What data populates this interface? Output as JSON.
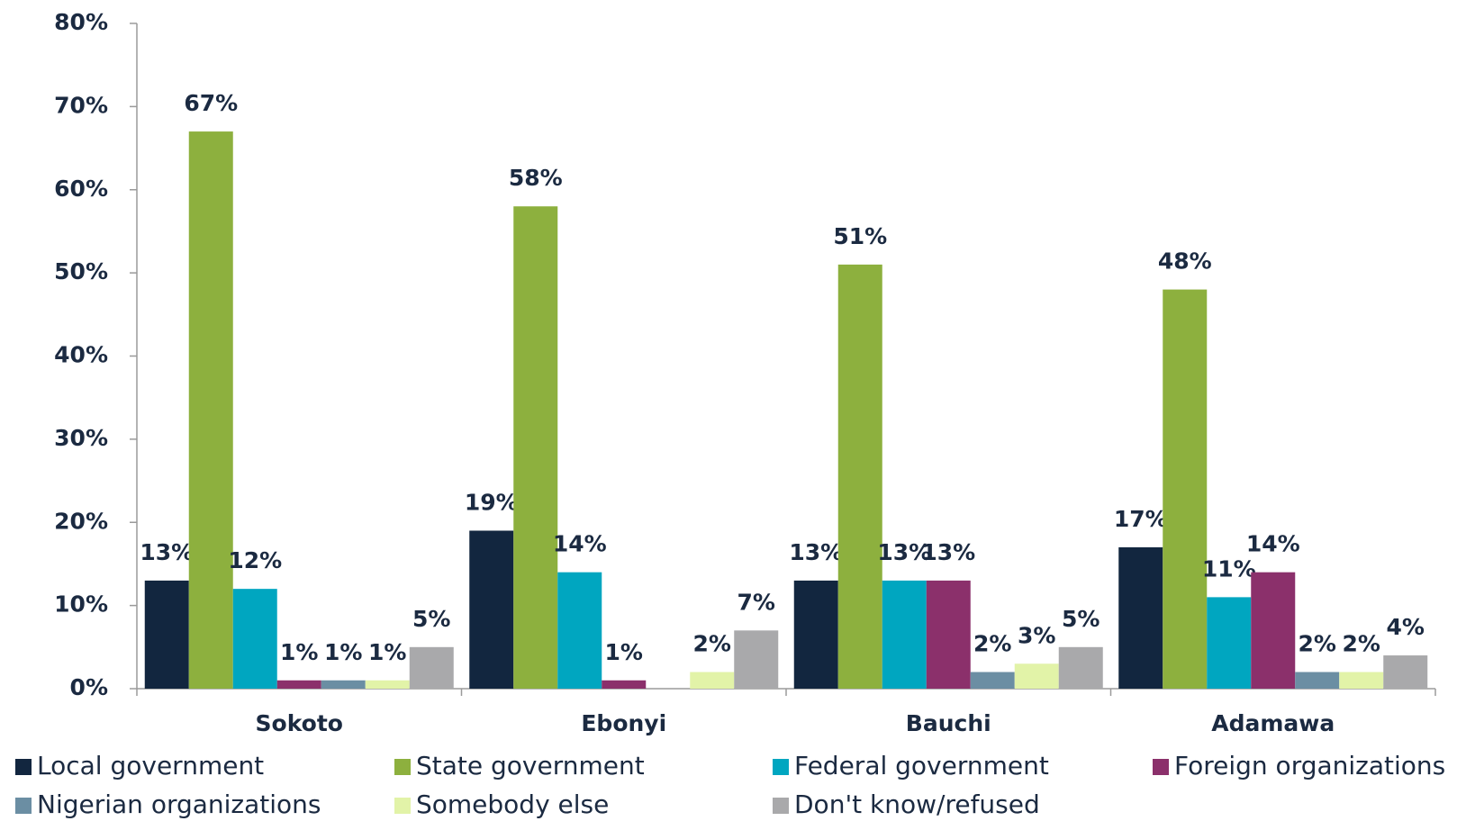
{
  "chart_data": {
    "type": "bar",
    "categories": [
      "Sokoto",
      "Ebonyi",
      "Bauchi",
      "Adamawa"
    ],
    "series": [
      {
        "name": "Local government",
        "color": "#12263f",
        "values": [
          13,
          19,
          13,
          17
        ],
        "value_labels": [
          "13%",
          "19%",
          "13%",
          "17%"
        ]
      },
      {
        "name": "State government",
        "color": "#8db03e",
        "values": [
          67,
          58,
          51,
          48
        ],
        "value_labels": [
          "67%",
          "58%",
          "51%",
          "48%"
        ]
      },
      {
        "name": "Federal government",
        "color": "#00a6c0",
        "values": [
          12,
          14,
          13,
          11
        ],
        "value_labels": [
          "12%",
          "14%",
          "13%",
          "11%"
        ]
      },
      {
        "name": "Foreign organizations",
        "color": "#8b306b",
        "values": [
          1,
          1,
          13,
          14
        ],
        "value_labels": [
          "1%",
          "1%",
          "13%",
          "14%"
        ]
      },
      {
        "name": "Nigerian organizations",
        "color": "#6b8ea3",
        "values": [
          1,
          null,
          2,
          2
        ],
        "value_labels": [
          "1%",
          null,
          "2%",
          "2%"
        ]
      },
      {
        "name": "Somebody else",
        "color": "#e2f3a8",
        "values": [
          1,
          2,
          3,
          2
        ],
        "value_labels": [
          "1%",
          "2%",
          "3%",
          "2%"
        ]
      },
      {
        "name": "Don't know/refused",
        "color": "#a9a9ab",
        "values": [
          5,
          7,
          5,
          4
        ],
        "value_labels": [
          "5%",
          "7%",
          "5%",
          "4%"
        ]
      }
    ],
    "ylim": [
      0,
      80
    ],
    "yticks": [
      {
        "value": 0,
        "label": "0%"
      },
      {
        "value": 10,
        "label": "10%"
      },
      {
        "value": 20,
        "label": "20%"
      },
      {
        "value": 30,
        "label": "30%"
      },
      {
        "value": 40,
        "label": "40%"
      },
      {
        "value": 50,
        "label": "50%"
      },
      {
        "value": 60,
        "label": "60%"
      },
      {
        "value": 70,
        "label": "70%"
      },
      {
        "value": 80,
        "label": "80%"
      }
    ],
    "grid": false,
    "legend": "bottom"
  }
}
